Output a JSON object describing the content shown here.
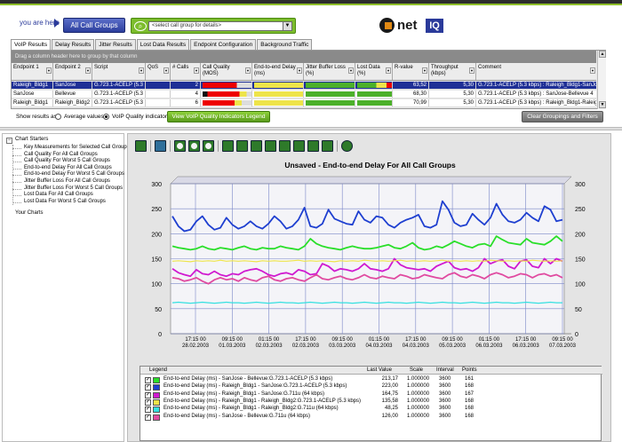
{
  "header": {
    "you_are_here": "you are here",
    "all_call_groups": "All Call Groups",
    "select_placeholder": "<select call group for details>",
    "logo_text": "net",
    "logo_badge": "IQ"
  },
  "tabs": [
    "VoIP Results",
    "Delay Results",
    "Jitter Results",
    "Lost Data Results",
    "Endpoint Configuration",
    "Background Traffic"
  ],
  "grid": {
    "group_hint": "Drag a column header here to group by that column",
    "columns": [
      "Endpoint 1",
      "Endpoint 2",
      "Script",
      "QoS",
      "# Calls",
      "Call Quality (MOS)",
      "End-to-end Delay (ms)",
      "Jitter Buffer Loss (%)",
      "Lost Data (%)",
      "R-value",
      "Throughput (kbps)",
      "Comment"
    ],
    "rows": [
      {
        "ep1": "Raleigh_Bldg1",
        "ep2": "SanJose",
        "script": "G.723.1-ACELP (5.3 kbp)",
        "calls": "2",
        "rvalue": "63,52",
        "throughput": "5,30",
        "comment": "G.723.1-ACELP (5.3 kbps) : Raleigh_Bldg1-SanJose 2"
      },
      {
        "ep1": "SanJose",
        "ep2": "Bellevue",
        "script": "G.723.1-ACELP (5.3 kbp)",
        "calls": "4",
        "rvalue": "68,30",
        "throughput": "5,30",
        "comment": "G.723.1-ACELP (5.3 kbps) : SanJose-Bellevue 4"
      },
      {
        "ep1": "Raleigh_Bldg1",
        "ep2": "Raleigh_Bldg2",
        "script": "G.723.1-ACELP (5.3 kbp)",
        "calls": "6",
        "rvalue": "70,99",
        "throughput": "5,30",
        "comment": "G.723.1-ACELP (5.3 kbps) : Raleigh_Bldg1-Raleigh_Bl"
      }
    ],
    "show_results_as": "Show results as:",
    "average_values": "Average values",
    "voip_quality": "VoIP Quality indicators",
    "view_legend_btn": "View VoIP Quality Indicators Legend",
    "clear_btn": "Clear Groupings and Filters"
  },
  "tree": {
    "root": "Chart Starters",
    "items": [
      "Key Measurements for Selected Call Groups",
      "Call Quality For All Call Groups",
      "Call Quality For Worst 5 Call Groups",
      "End-to-end Delay For All Call Groups",
      "End-to-end Delay For Worst 5 Call Groups",
      "Jitter Buffer Loss For All Call Groups",
      "Jitter Buffer Loss For Worst 5 Call Groups",
      "Lost Data For All Call Groups",
      "Lost Data For Worst 5 Call Groups"
    ],
    "your_charts": "Your Charts"
  },
  "legend": {
    "headers": {
      "legend": "Legend",
      "last": "Last Value",
      "scale": "Scale",
      "interval": "Interval",
      "points": "Points"
    },
    "rows": [
      {
        "name": "End-to-end Delay (ms) - SanJose - Bellevue:G.723.1-ACELP (5.3 kbps)",
        "color": "#2adf2a",
        "last": "213,17",
        "scale": "1.000000",
        "interval": "3600",
        "points": "161"
      },
      {
        "name": "End-to-end Delay (ms) - Raleigh_Bldg1 - SanJose:G.723.1-ACELP (5.3 kbps)",
        "color": "#1e3fd0",
        "last": "223,00",
        "scale": "1.000000",
        "interval": "3600",
        "points": "168"
      },
      {
        "name": "End-to-end Delay (ms) - Raleigh_Bldg1 - SanJose:G.711u (64 kbps)",
        "color": "#d01ad0",
        "last": "164,75",
        "scale": "1.000000",
        "interval": "3600",
        "points": "167"
      },
      {
        "name": "End-to-end Delay (ms) - Raleigh_Bldg1 - Raleigh_Bldg2:G.723.1-ACELP (5.3 kbps)",
        "color": "#eee44a",
        "last": "135,58",
        "scale": "1.000000",
        "interval": "3600",
        "points": "168"
      },
      {
        "name": "End-to-end Delay (ms) - Raleigh_Bldg1 - Raleigh_Bldg2:G.711u (64 kbps)",
        "color": "#35e0e0",
        "last": "48,25",
        "scale": "1.000000",
        "interval": "3600",
        "points": "168"
      },
      {
        "name": "End-to-end Delay (ms) - SanJose - Bellevue:G.711u (64 kbps)",
        "color": "#e04aa0",
        "last": "126,00",
        "scale": "1.000000",
        "interval": "3600",
        "points": "168"
      }
    ]
  },
  "chart_data": {
    "type": "line",
    "title": "Unsaved - End-to-end Delay For All Call Groups",
    "ylim": [
      0,
      300
    ],
    "y2lim": [
      0,
      300
    ],
    "yticks": [
      0,
      50,
      100,
      150,
      200,
      250,
      300
    ],
    "x_tick_labels": [
      [
        "17:15 00",
        "28.02.2003"
      ],
      [
        "09:15 00",
        "01.03.2003"
      ],
      [
        "01:15 00",
        "02.03.2003"
      ],
      [
        "17:15 00",
        "02.03.2003"
      ],
      [
        "09:15 00",
        "03.03.2003"
      ],
      [
        "01:15 00",
        "04.03.2003"
      ],
      [
        "17:15 00",
        "04.03.2003"
      ],
      [
        "09:15 00",
        "05.03.2003"
      ],
      [
        "01:15 00",
        "06.03.2003"
      ],
      [
        "17:15 00",
        "06.03.2003"
      ],
      [
        "09:15 00",
        "07.03.2003"
      ]
    ],
    "series": [
      {
        "name": "End-to-end Delay (ms) - Raleigh_Bldg1 - SanJose:G.723.1-ACELP (5.3 kbps)",
        "color": "#1e3fd0",
        "values": [
          235,
          215,
          205,
          208,
          225,
          235,
          218,
          208,
          212,
          232,
          218,
          210,
          215,
          225,
          215,
          210,
          220,
          235,
          225,
          210,
          215,
          228,
          252,
          215,
          212,
          220,
          248,
          230,
          225,
          220,
          218,
          245,
          228,
          222,
          235,
          232,
          218,
          212,
          222,
          228,
          232,
          238,
          215,
          212,
          218,
          265,
          248,
          222,
          215,
          218,
          240,
          228,
          218,
          232,
          260,
          238,
          225,
          222,
          228,
          242,
          232,
          225,
          255,
          248,
          225,
          228
        ]
      },
      {
        "name": "End-to-end Delay (ms) - SanJose - Bellevue:G.723.1-ACELP (5.3 kbps)",
        "color": "#2adf2a",
        "values": [
          175,
          172,
          170,
          168,
          170,
          175,
          170,
          168,
          172,
          170,
          168,
          172,
          175,
          170,
          168,
          172,
          170,
          170,
          175,
          172,
          170,
          168,
          175,
          190,
          180,
          175,
          172,
          170,
          168,
          172,
          175,
          172,
          170,
          170,
          172,
          175,
          178,
          172,
          170,
          175,
          182,
          172,
          168,
          170,
          175,
          172,
          178,
          185,
          180,
          175,
          172,
          178,
          180,
          175,
          195,
          188,
          182,
          180,
          178,
          190,
          182,
          180,
          178,
          185,
          195,
          185
        ]
      },
      {
        "name": "End-to-end Delay (ms) - Raleigh_Bldg1 - SanJose:G.711u (64 kbps)",
        "color": "#d01ad0",
        "values": [
          130,
          122,
          118,
          115,
          128,
          120,
          118,
          125,
          118,
          115,
          120,
          118,
          125,
          128,
          130,
          125,
          118,
          115,
          120,
          122,
          118,
          128,
          125,
          118,
          120,
          140,
          135,
          125,
          130,
          128,
          125,
          130,
          140,
          130,
          128,
          125,
          130,
          150,
          138,
          132,
          130,
          128,
          130,
          125,
          135,
          140,
          145,
          132,
          128,
          130,
          125,
          132,
          150,
          140,
          145,
          148,
          135,
          130,
          145,
          148,
          135,
          132,
          150,
          140,
          150,
          145
        ]
      },
      {
        "name": "End-to-end Delay (ms) - Raleigh_Bldg1 - Raleigh_Bldg2:G.723.1-ACELP (5.3 kbps)",
        "color": "#eee44a",
        "values": [
          145,
          146,
          145,
          144,
          146,
          145,
          146,
          145,
          147,
          145,
          146,
          145,
          146,
          145,
          144,
          146,
          145,
          146,
          145,
          145,
          146,
          147,
          145,
          146,
          145,
          146,
          145,
          144,
          146,
          145,
          146,
          145,
          147,
          146,
          145,
          146,
          145,
          146,
          147,
          145,
          146,
          145,
          146,
          145,
          146,
          147,
          145,
          146,
          145,
          146,
          145,
          146,
          145,
          147,
          146,
          145,
          146,
          145,
          146,
          145,
          147,
          146,
          145,
          146,
          145,
          146
        ]
      },
      {
        "name": "End-to-end Delay (ms) - Raleigh_Bldg1 - Raleigh_Bldg2:G.711u (64 kbps)",
        "color": "#35e0e0",
        "values": [
          62,
          63,
          62,
          61,
          62,
          63,
          62,
          61,
          62,
          63,
          62,
          62,
          61,
          62,
          63,
          62,
          61,
          62,
          63,
          62,
          62,
          61,
          62,
          63,
          62,
          61,
          62,
          63,
          62,
          62,
          61,
          62,
          63,
          62,
          61,
          62,
          63,
          62,
          62,
          61,
          62,
          63,
          62,
          61,
          62,
          63,
          62,
          62,
          61,
          62,
          63,
          62,
          61,
          62,
          63,
          62,
          62,
          61,
          62,
          63,
          62,
          61,
          62,
          63,
          62,
          62
        ]
      },
      {
        "name": "End-to-end Delay (ms) - SanJose - Bellevue:G.711u (64 kbps)",
        "color": "#e04aa0",
        "values": [
          112,
          110,
          105,
          108,
          112,
          105,
          100,
          108,
          112,
          108,
          110,
          105,
          112,
          108,
          105,
          112,
          115,
          108,
          105,
          110,
          112,
          108,
          105,
          112,
          118,
          110,
          108,
          112,
          115,
          110,
          108,
          112,
          118,
          112,
          110,
          115,
          112,
          110,
          118,
          115,
          110,
          112,
          118,
          115,
          112,
          110,
          118,
          122,
          115,
          112,
          118,
          115,
          110,
          118,
          122,
          118,
          112,
          115,
          120,
          118,
          112,
          118,
          120,
          115,
          118,
          112
        ]
      }
    ]
  }
}
